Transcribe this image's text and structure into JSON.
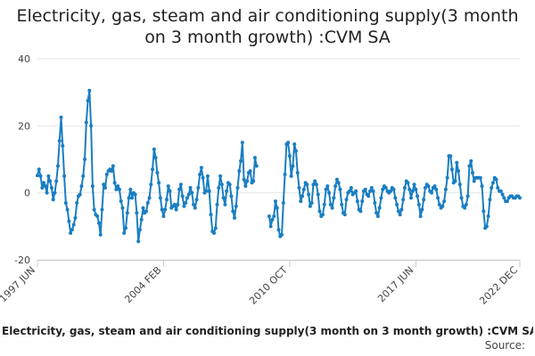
{
  "title_line1": "Electricity, gas, steam and air conditioning supply(3 month",
  "title_line2": "on 3 month growth) :CVM SA",
  "footer_title": "Electricity, gas, steam and air conditioning supply(3 month on 3 month growth) :CVM SA",
  "source_label": "Source:",
  "colors": {
    "line": "#1a7ec2",
    "grid": "#e6e6e6",
    "axis": "#cccccc"
  },
  "chart_data": {
    "type": "line",
    "title": "Electricity, gas, steam and air conditioning supply(3 month on 3 month growth) :CVM SA",
    "xlabel": "",
    "ylabel": "",
    "ylim": [
      -20,
      40
    ],
    "yticks": [
      -20,
      0,
      20,
      40
    ],
    "y_tick_labels": [
      "-20",
      "0",
      "20",
      "40"
    ],
    "grid": true,
    "legend": "none",
    "x_ticks": [
      {
        "label": "1997 JUN",
        "index": 0
      },
      {
        "label": "2004 FEB",
        "index": 80
      },
      {
        "label": "2010 OCT",
        "index": 160
      },
      {
        "label": "2017 JUN",
        "index": 240
      },
      {
        "label": "2022 DEC",
        "index": 306
      }
    ],
    "series": [
      {
        "values": [
          5.2,
          7.0,
          5.0,
          1.5,
          3.0,
          2.0,
          0.0,
          5.0,
          3.5,
          1.5,
          -2.0,
          0.0,
          3.5,
          8.0,
          15.5,
          22.5,
          14.0,
          5.0,
          -3.0,
          -5.0,
          -8.5,
          -12.0,
          -11.0,
          -9.5,
          -7.5,
          -3.0,
          -1.0,
          -0.5,
          2.0,
          5.0,
          10.0,
          21.0,
          27.5,
          30.5,
          20.0,
          2.0,
          -5.0,
          -6.5,
          -7.0,
          -9.0,
          -12.5,
          -5.0,
          2.5,
          1.5,
          5.5,
          6.5,
          7.0,
          6.5,
          8.0,
          3.0,
          1.0,
          2.0,
          1.0,
          -2.5,
          -4.5,
          -12.0,
          -10.5,
          -6.0,
          -1.5,
          1.0,
          -1.5,
          0.0,
          -0.5,
          -6.0,
          -14.5,
          -11.0,
          -8.0,
          -4.5,
          -6.0,
          -5.5,
          -3.0,
          -1.5,
          2.5,
          7.0,
          13.0,
          10.5,
          6.0,
          3.0,
          -1.5,
          -5.0,
          -7.0,
          -5.0,
          -2.0,
          2.0,
          0.5,
          -4.5,
          -4.0,
          -3.5,
          -5.0,
          -3.5,
          1.0,
          2.5,
          -1.0,
          -4.0,
          -3.0,
          -1.5,
          -0.5,
          1.5,
          0.0,
          -3.5,
          -4.5,
          -2.0,
          1.5,
          5.5,
          7.5,
          4.5,
          0.0,
          0.5,
          5.0,
          0.5,
          -6.5,
          -11.5,
          -12.0,
          -10.5,
          -3.5,
          1.5,
          5.0,
          2.5,
          -1.5,
          -3.5,
          0.5,
          3.0,
          2.5,
          -1.0,
          -5.5,
          -7.5,
          -4.0,
          1.5,
          6.5,
          9.5,
          15.0,
          4.0,
          2.0,
          3.5,
          6.0,
          6.5,
          3.0,
          3.5,
          10.5,
          8.0,
          null,
          null,
          null,
          null,
          null,
          null,
          null,
          -7.0,
          -10.0,
          -8.0,
          -7.0,
          -2.5,
          -4.5,
          -11.0,
          -13.0,
          -12.5,
          -3.0,
          5.5,
          14.5,
          15.0,
          11.0,
          5.0,
          8.0,
          14.5,
          12.5,
          6.0,
          1.5,
          -2.5,
          -1.0,
          1.0,
          3.0,
          2.5,
          -0.5,
          -4.0,
          -3.0,
          2.5,
          3.5,
          2.5,
          -0.5,
          -5.5,
          -7.0,
          -6.5,
          -3.5,
          1.0,
          2.0,
          0.0,
          -3.5,
          -4.5,
          -1.5,
          2.0,
          4.0,
          3.0,
          1.0,
          -3.5,
          -6.0,
          -6.5,
          -2.0,
          0.0,
          0.5,
          1.5,
          -0.5,
          0.0,
          0.5,
          -2.5,
          -5.0,
          -5.5,
          -2.5,
          0.5,
          1.0,
          -0.5,
          -1.0,
          0.5,
          1.5,
          0.5,
          -3.0,
          -6.0,
          -7.0,
          -4.5,
          -1.5,
          1.0,
          2.0,
          1.5,
          0.5,
          0.0,
          0.5,
          1.5,
          1.0,
          -1.5,
          -3.5,
          -5.5,
          -6.5,
          -5.0,
          -2.0,
          1.5,
          3.5,
          3.0,
          1.0,
          -1.5,
          0.5,
          2.5,
          1.0,
          -1.0,
          -3.5,
          -7.0,
          -5.0,
          -2.0,
          1.5,
          2.5,
          2.0,
          0.5,
          0.0,
          1.5,
          2.0,
          1.0,
          -1.5,
          -3.5,
          -4.5,
          -4.0,
          -2.5,
          1.0,
          4.5,
          11.0,
          11.0,
          7.0,
          3.0,
          3.5,
          9.0,
          6.5,
          2.5,
          -1.5,
          -4.0,
          -4.5,
          -3.5,
          -1.0,
          8.0,
          9.5,
          6.0,
          3.5,
          4.5,
          4.5,
          4.5,
          4.5,
          2.0,
          -5.5,
          -10.5,
          -10.0,
          -7.0,
          -2.0,
          1.5,
          3.0,
          4.5,
          4.0,
          1.5,
          0.5,
          0.5,
          -0.5,
          -1.5,
          -2.5,
          -2.5,
          -1.5,
          -1.0,
          -1.0,
          -1.5,
          -1.5,
          -1.0,
          -1.0,
          -1.5
        ]
      }
    ]
  }
}
